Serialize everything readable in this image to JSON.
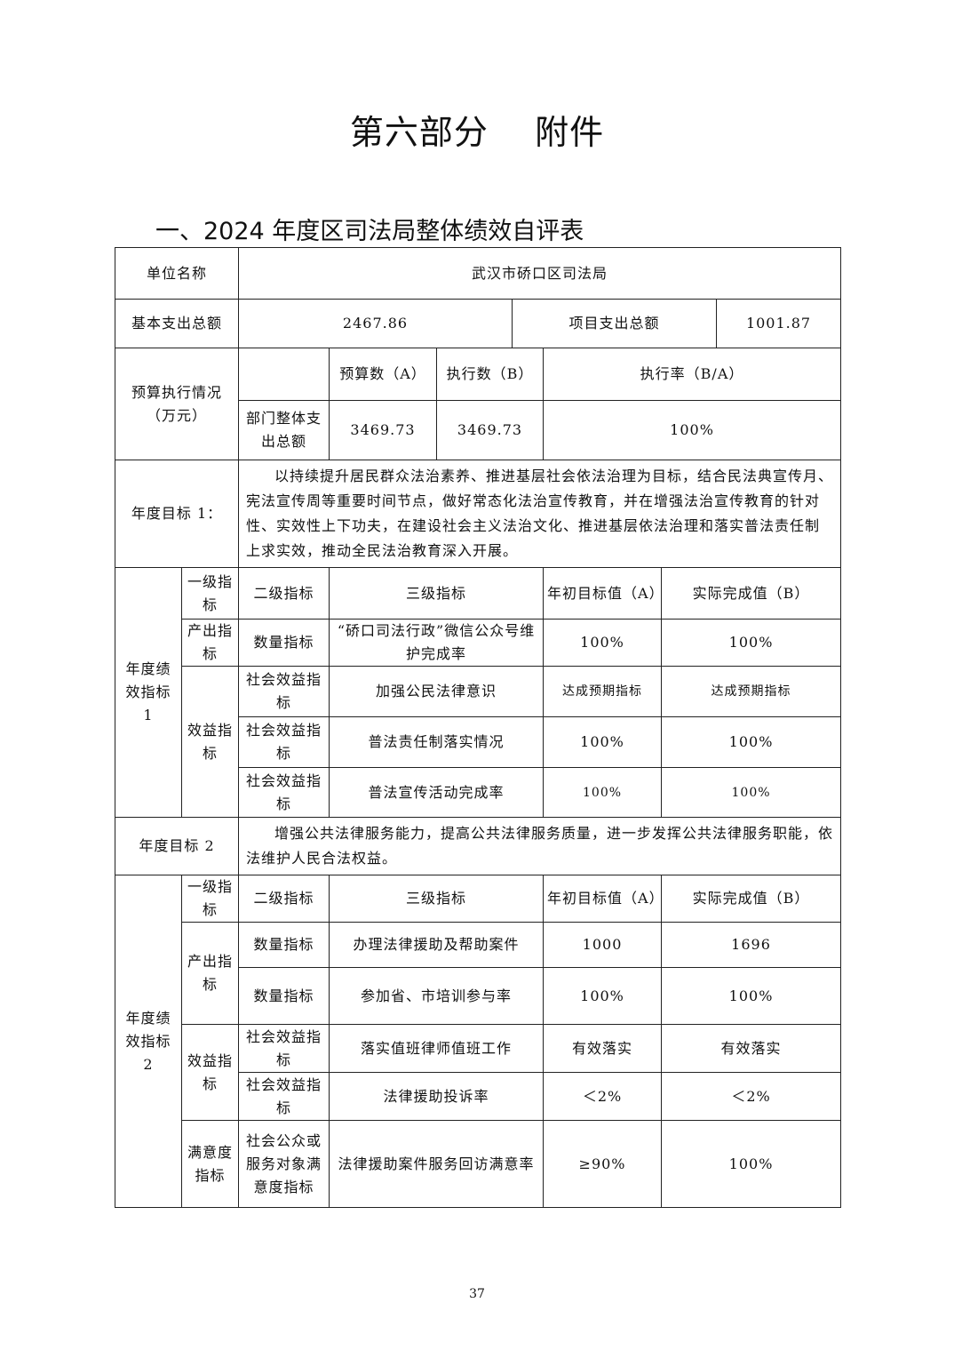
{
  "title": "第六部分    附件",
  "subtitle": "一、2024 年度区司法局整体绩效自评表",
  "unit": {
    "label": "单位名称",
    "value": "武汉市硚口区司法局"
  },
  "expense": {
    "basic_label": "基本支出总额",
    "basic_value": "2467.86",
    "project_label": "项目支出总额",
    "project_value": "1001.87"
  },
  "budget": {
    "label": "预算执行情况（万元）",
    "col_a": "预算数（A）",
    "col_b": "执行数（B）",
    "col_rate": "执行率（B/A）",
    "row_label": "部门整体支出总额",
    "a": "3469.73",
    "b": "3469.73",
    "rate": "100%"
  },
  "goal1": {
    "label": "年度目标 1：",
    "text": "以持续提升居民群众法治素养、推进基层社会依法治理为目标，结合民法典宣传月、宪法宣传周等重要时间节点，做好常态化法治宣传教育，并在增强法治宣传教育的针对性、实效性上下功夫，在建设社会主义法治文化、推进基层依法治理和落实普法责任制上求实效，推动全民法治教育深入开展。"
  },
  "headers": {
    "level1": "一级指标",
    "level2": "二级指标",
    "level3": "三级指标",
    "target": "年初目标值（A）",
    "actual": "实际完成值（B）"
  },
  "perf1": {
    "label": "年度绩效指标 1",
    "groups": [
      "产出指标",
      "效益指标"
    ],
    "rows": [
      {
        "l2": "数量指标",
        "l3": "“硚口司法行政”微信公众号维护完成率",
        "target": "100%",
        "actual": "100%"
      },
      {
        "l2": "社会效益指标",
        "l3": "加强公民法律意识",
        "target": "达成预期指标",
        "actual": "达成预期指标"
      },
      {
        "l2": "社会效益指标",
        "l3": "普法责任制落实情况",
        "target": "100%",
        "actual": "100%"
      },
      {
        "l2": "社会效益指标",
        "l3": "普法宣传活动完成率",
        "target": "100%",
        "actual": "100%"
      }
    ]
  },
  "goal2": {
    "label": "年度目标 2",
    "text": "增强公共法律服务能力，提高公共法律服务质量，进一步发挥公共法律服务职能，依法维护人民合法权益。"
  },
  "perf2": {
    "label": "年度绩效指标 2",
    "groups": [
      "产出指标",
      "效益指标",
      "满意度指标"
    ],
    "rows": [
      {
        "l2": "数量指标",
        "l3": "办理法律援助及帮助案件",
        "target": "1000",
        "actual": "1696"
      },
      {
        "l2": "数量指标",
        "l3": "参加省、市培训参与率",
        "target": "100%",
        "actual": "100%"
      },
      {
        "l2": "社会效益指标",
        "l3": "落实值班律师值班工作",
        "target": "有效落实",
        "actual": "有效落实"
      },
      {
        "l2": "社会效益指标",
        "l3": "法律援助投诉率",
        "target": "＜2%",
        "actual": "＜2%"
      },
      {
        "l2": "社会公众或服务对象满意度指标",
        "l3": "法律援助案件服务回访满意率",
        "target": "≥90%",
        "actual": "100%"
      }
    ]
  },
  "page_number": "37"
}
